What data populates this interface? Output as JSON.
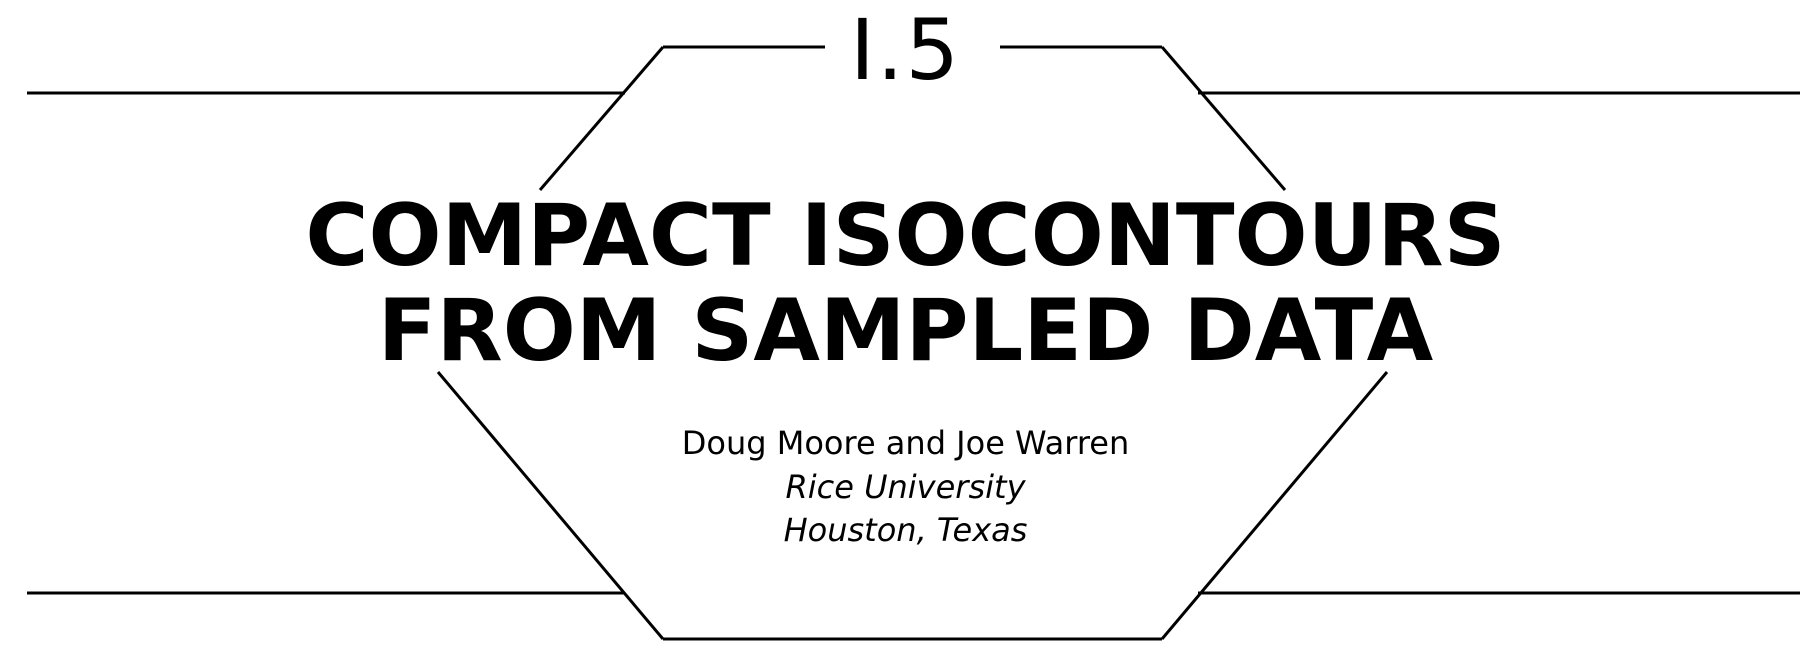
{
  "header": {
    "chapter_number": "I.5"
  },
  "title": {
    "line1": "COMPACT ISOCONTOURS",
    "line2": "FROM SAMPLED DATA"
  },
  "byline": {
    "authors": "Doug Moore and Joe Warren",
    "affiliation": "Rice University",
    "location": "Houston, Texas"
  }
}
